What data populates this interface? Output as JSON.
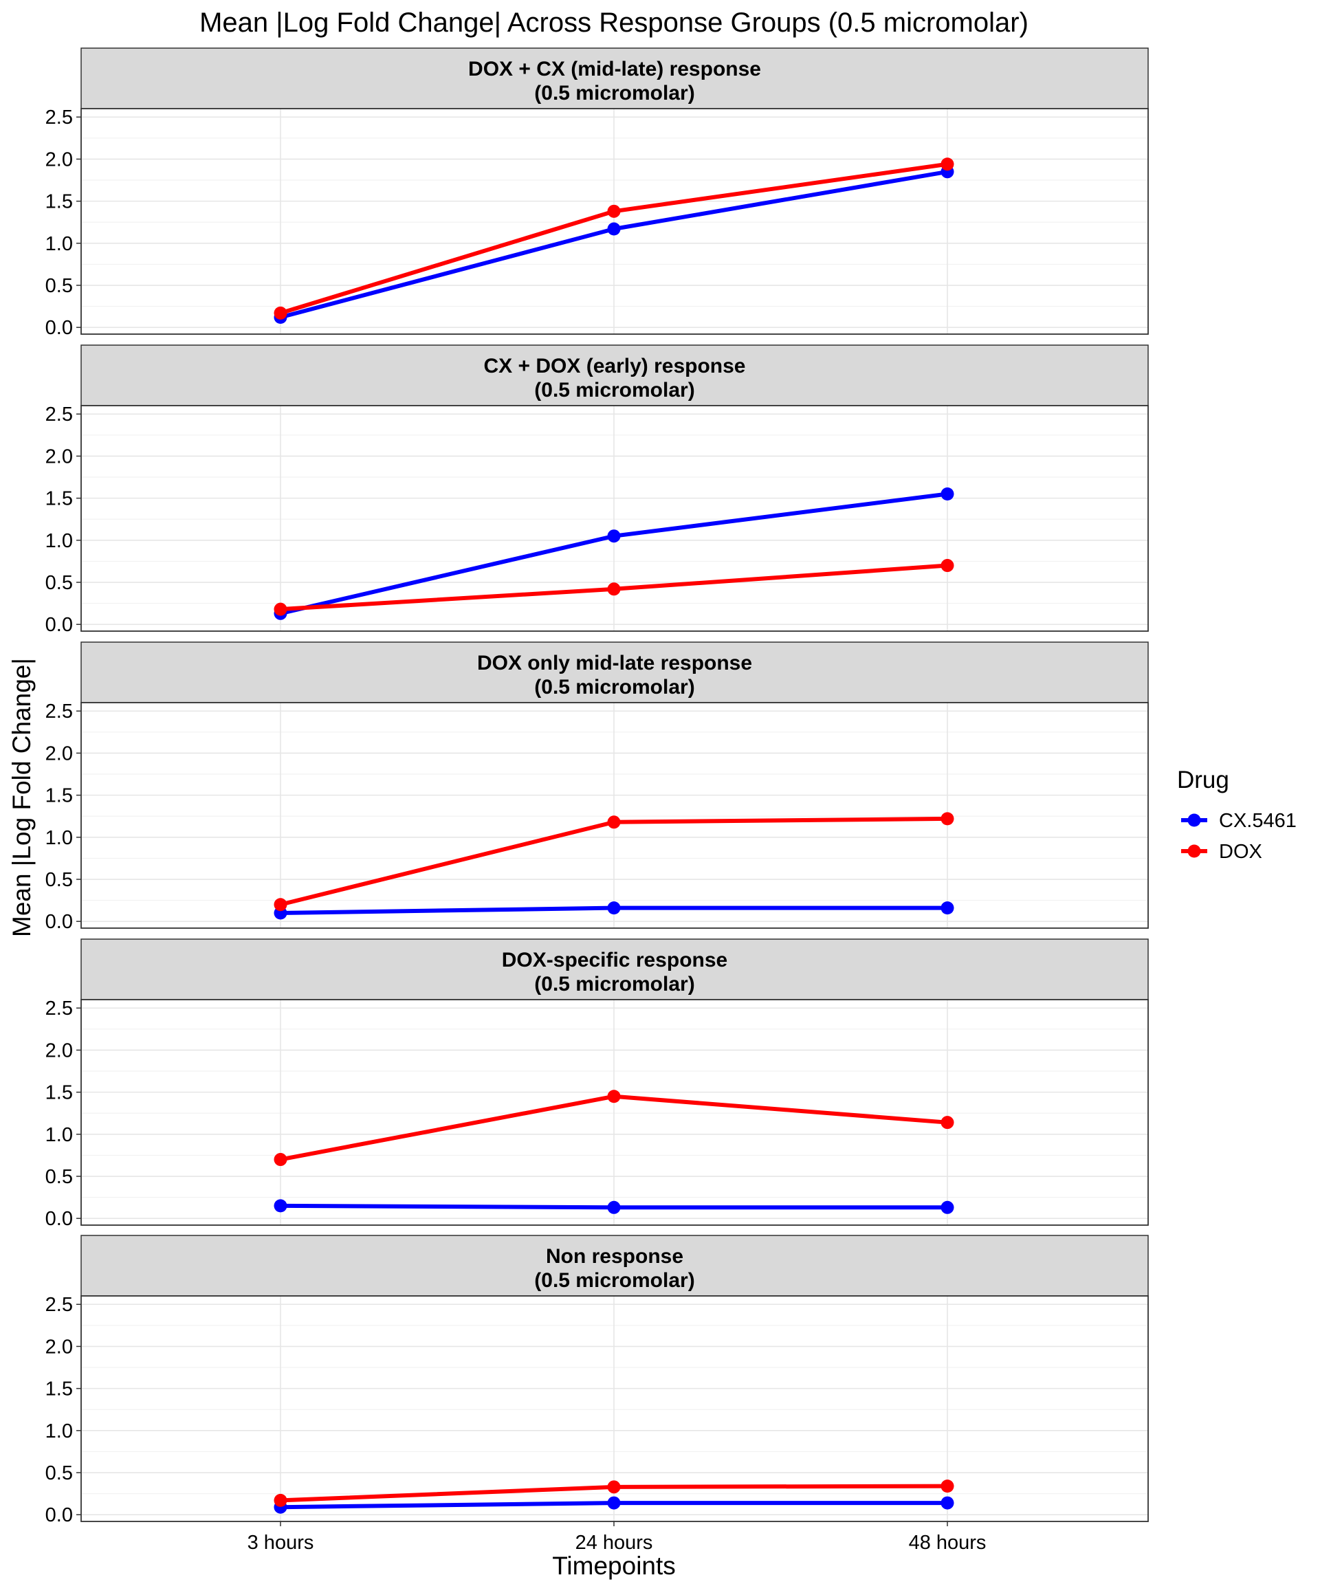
{
  "chart_data": {
    "type": "line",
    "title": "Mean |Log Fold Change| Across Response Groups (0.5 micromolar)",
    "xlabel": "Timepoints",
    "ylabel": "Mean |Log Fold Change|",
    "categories": [
      "3 hours",
      "24 hours",
      "48 hours"
    ],
    "y_ticks": [
      "0.0",
      "0.5",
      "1.0",
      "1.5",
      "2.0",
      "2.5"
    ],
    "ylim": [
      -0.08,
      2.6
    ],
    "grid": true,
    "legend": {
      "title": "Drug",
      "position": "right",
      "entries": [
        {
          "label": "CX.5461",
          "color": "#0000FF"
        },
        {
          "label": "DOX",
          "color": "#FF0000"
        }
      ]
    },
    "panels": [
      {
        "strip_line1": "DOX + CX (mid-late) response",
        "strip_line2": "(0.5 micromolar)",
        "series": [
          {
            "name": "CX.5461",
            "color": "#0000FF",
            "values": [
              0.12,
              1.17,
              1.85
            ]
          },
          {
            "name": "DOX",
            "color": "#FF0000",
            "values": [
              0.17,
              1.38,
              1.94
            ]
          }
        ]
      },
      {
        "strip_line1": "CX + DOX (early) response",
        "strip_line2": "(0.5 micromolar)",
        "series": [
          {
            "name": "CX.5461",
            "color": "#0000FF",
            "values": [
              0.13,
              1.05,
              1.55
            ]
          },
          {
            "name": "DOX",
            "color": "#FF0000",
            "values": [
              0.18,
              0.42,
              0.7
            ]
          }
        ]
      },
      {
        "strip_line1": "DOX only mid-late response",
        "strip_line2": "(0.5 micromolar)",
        "series": [
          {
            "name": "CX.5461",
            "color": "#0000FF",
            "values": [
              0.1,
              0.16,
              0.16
            ]
          },
          {
            "name": "DOX",
            "color": "#FF0000",
            "values": [
              0.2,
              1.18,
              1.22
            ]
          }
        ]
      },
      {
        "strip_line1": "DOX-specific response",
        "strip_line2": "(0.5 micromolar)",
        "series": [
          {
            "name": "CX.5461",
            "color": "#0000FF",
            "values": [
              0.15,
              0.13,
              0.13
            ]
          },
          {
            "name": "DOX",
            "color": "#FF0000",
            "values": [
              0.7,
              1.45,
              1.14
            ]
          }
        ]
      },
      {
        "strip_line1": "Non response",
        "strip_line2": "(0.5 micromolar)",
        "series": [
          {
            "name": "CX.5461",
            "color": "#0000FF",
            "values": [
              0.09,
              0.14,
              0.14
            ]
          },
          {
            "name": "DOX",
            "color": "#FF0000",
            "values": [
              0.17,
              0.33,
              0.34
            ]
          }
        ]
      }
    ]
  }
}
